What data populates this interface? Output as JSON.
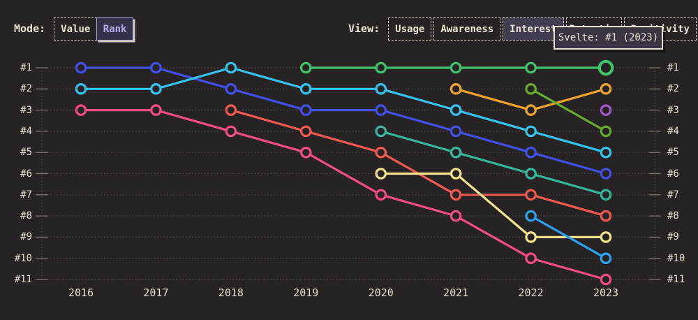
{
  "header": {
    "mode": {
      "label": "Mode:",
      "options": [
        "Value",
        "Rank"
      ],
      "selected": "Rank"
    },
    "view": {
      "label": "View:",
      "options": [
        "Usage",
        "Awareness",
        "Interest",
        "Retention",
        "Positivity"
      ],
      "selected": "Interest"
    }
  },
  "tooltip": {
    "text": "Svelte: #1 (2023)"
  },
  "colors": {
    "background": "#272223",
    "text": "#ece4d6",
    "grid": "#4f4949",
    "selected_mode_accent": "#b2a1e0",
    "tooltip_background": "#3a3443",
    "tooltip_border": "#e8e0d3"
  },
  "chart_data": {
    "type": "line",
    "variant": "bump-rank-chart",
    "title": "",
    "xlabel": "",
    "ylabel": "",
    "x_labels": [
      "2016",
      "2017",
      "2018",
      "2019",
      "2020",
      "2021",
      "2022",
      "2023"
    ],
    "rank_labels": [
      "#1",
      "#2",
      "#3",
      "#4",
      "#5",
      "#6",
      "#7",
      "#8",
      "#9",
      "#10",
      "#11"
    ],
    "ylim": [
      1,
      11
    ],
    "y_inverted": true,
    "grid": "dotted-horizontal",
    "legend": "none",
    "series": [
      {
        "id": "royal-blue",
        "label": "",
        "color": "#4350e8",
        "points": [
          [
            2016,
            1
          ],
          [
            2017,
            1
          ],
          [
            2018,
            2
          ],
          [
            2019,
            3
          ],
          [
            2020,
            3
          ],
          [
            2021,
            4
          ],
          [
            2022,
            5
          ],
          [
            2023,
            6
          ]
        ]
      },
      {
        "id": "cyan",
        "label": "",
        "color": "#35c2ec",
        "points": [
          [
            2016,
            2
          ],
          [
            2017,
            2
          ],
          [
            2018,
            1
          ],
          [
            2019,
            2
          ],
          [
            2020,
            2
          ],
          [
            2021,
            3
          ],
          [
            2022,
            4
          ],
          [
            2023,
            5
          ]
        ]
      },
      {
        "id": "pink",
        "label": "",
        "color": "#f04d84",
        "points": [
          [
            2016,
            3
          ],
          [
            2017,
            3
          ],
          [
            2018,
            4
          ],
          [
            2019,
            5
          ],
          [
            2020,
            7
          ],
          [
            2021,
            8
          ],
          [
            2022,
            10
          ],
          [
            2023,
            11
          ]
        ]
      },
      {
        "id": "coral-red",
        "label": "",
        "color": "#ee5a52",
        "points": [
          [
            2018,
            3
          ],
          [
            2019,
            4
          ],
          [
            2020,
            5
          ],
          [
            2021,
            7
          ],
          [
            2022,
            7
          ],
          [
            2023,
            8
          ]
        ]
      },
      {
        "id": "teal",
        "label": "",
        "color": "#36b79c",
        "points": [
          [
            2020,
            4
          ],
          [
            2021,
            5
          ],
          [
            2022,
            6
          ],
          [
            2023,
            7
          ]
        ]
      },
      {
        "id": "pale-yellow",
        "label": "",
        "color": "#f2e38a",
        "points": [
          [
            2020,
            6
          ],
          [
            2021,
            6
          ],
          [
            2022,
            9
          ],
          [
            2023,
            9
          ]
        ]
      },
      {
        "id": "orange",
        "label": "",
        "color": "#f0a32a",
        "points": [
          [
            2021,
            2
          ],
          [
            2022,
            3
          ],
          [
            2023,
            2
          ]
        ]
      },
      {
        "id": "light-green",
        "label": "",
        "color": "#69aa32",
        "points": [
          [
            2022,
            2
          ],
          [
            2023,
            4
          ]
        ]
      },
      {
        "id": "bright-blue",
        "label": "",
        "color": "#2aa2f0",
        "points": [
          [
            2022,
            8
          ],
          [
            2023,
            10
          ]
        ]
      },
      {
        "id": "purple",
        "label": "",
        "color": "#a259c8",
        "points": [
          [
            2023,
            3
          ]
        ]
      },
      {
        "id": "green",
        "label": "Svelte",
        "color": "#3fc46e",
        "points": [
          [
            2019,
            1
          ],
          [
            2020,
            1
          ],
          [
            2021,
            1
          ],
          [
            2022,
            1
          ],
          [
            2023,
            1
          ]
        ],
        "highlighted_point": [
          2023,
          1
        ]
      }
    ]
  }
}
